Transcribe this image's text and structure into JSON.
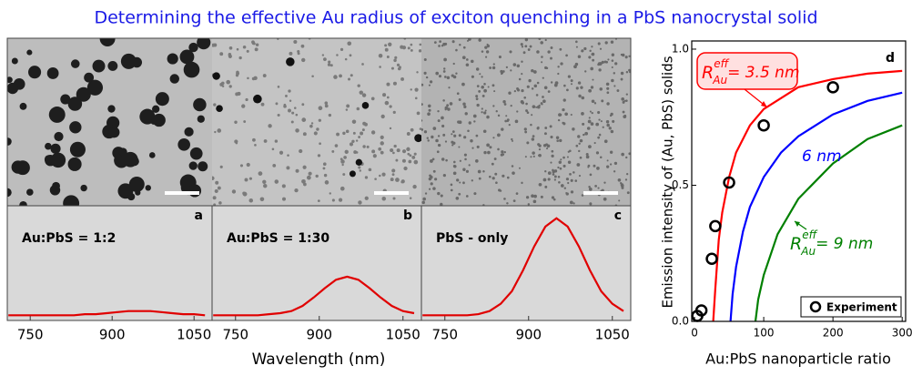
{
  "figure": {
    "title": "Determining the effective Au radius of exciton quenching in a PbS nanocrystal solid",
    "spectra_xlabel": "Wavelength (nm)"
  },
  "chart_data": [
    {
      "type": "line",
      "panel_label": "a",
      "annotation": "Au:PbS = 1:2",
      "x": [
        710,
        730,
        750,
        770,
        790,
        810,
        830,
        850,
        870,
        890,
        910,
        930,
        950,
        970,
        990,
        1010,
        1030,
        1050,
        1070
      ],
      "series": [
        {
          "color": "#e00000",
          "values": [
            0,
            0,
            0,
            0,
            0,
            0,
            0,
            0.01,
            0.01,
            0.02,
            0.03,
            0.04,
            0.04,
            0.04,
            0.03,
            0.02,
            0.01,
            0.01,
            0
          ]
        }
      ],
      "xlim": [
        708,
        1083
      ],
      "xticks": [
        750,
        900,
        1050
      ],
      "ylim": [
        -0.05,
        1.05
      ]
    },
    {
      "type": "line",
      "panel_label": "b",
      "annotation": "Au:PbS = 1:30",
      "x": [
        710,
        730,
        750,
        770,
        790,
        810,
        830,
        850,
        870,
        890,
        910,
        930,
        950,
        970,
        990,
        1010,
        1030,
        1050,
        1070
      ],
      "series": [
        {
          "color": "#e00000",
          "values": [
            0,
            0,
            0,
            0,
            0,
            0.01,
            0.02,
            0.04,
            0.09,
            0.17,
            0.26,
            0.34,
            0.37,
            0.34,
            0.26,
            0.17,
            0.09,
            0.04,
            0.02
          ]
        }
      ],
      "xlim": [
        708,
        1083
      ],
      "xticks": [
        750,
        900,
        1050
      ],
      "ylim": [
        -0.05,
        1.05
      ]
    },
    {
      "type": "line",
      "panel_label": "c",
      "annotation": "PbS - only",
      "x": [
        710,
        730,
        750,
        770,
        790,
        810,
        830,
        850,
        870,
        890,
        910,
        930,
        950,
        970,
        990,
        1010,
        1030,
        1050,
        1070
      ],
      "series": [
        {
          "color": "#e00000",
          "values": [
            0,
            0,
            0,
            0,
            0,
            0.01,
            0.04,
            0.11,
            0.23,
            0.43,
            0.66,
            0.85,
            0.93,
            0.85,
            0.66,
            0.43,
            0.23,
            0.11,
            0.04
          ]
        }
      ],
      "xlim": [
        708,
        1083
      ],
      "xticks": [
        750,
        900,
        1050
      ],
      "ylim": [
        -0.05,
        1.05
      ]
    },
    {
      "type": "scatter",
      "panel_label": "d",
      "xlabel": "Au:PbS nanoparticle ratio",
      "ylabel": "Emission intensity of (Au, PbS) solids",
      "xlim": [
        -4,
        305
      ],
      "xticks": [
        0,
        100,
        200,
        300
      ],
      "ylim": [
        0,
        1.03
      ],
      "yticks": [
        {
          "value": 0,
          "label": "0.0"
        },
        0.5,
        {
          "value": 1,
          "label": "1.0"
        }
      ],
      "legend": "lower right",
      "series": [
        {
          "name": "Experiment",
          "style": "marker",
          "color": "#000000",
          "x": [
            4,
            10,
            25,
            30,
            50,
            100,
            200
          ],
          "values": [
            0.02,
            0.04,
            0.23,
            0.35,
            0.51,
            0.72,
            0.86
          ]
        },
        {
          "style": "line",
          "color": "#ff0000",
          "x": [
            27,
            30,
            35,
            40,
            50,
            60,
            80,
            100,
            150,
            200,
            250,
            300
          ],
          "values": [
            0,
            0.12,
            0.3,
            0.4,
            0.53,
            0.62,
            0.72,
            0.78,
            0.86,
            0.89,
            0.91,
            0.92
          ]
        },
        {
          "style": "line",
          "color": "#0000ff",
          "x": [
            52,
            55,
            60,
            70,
            80,
            100,
            125,
            150,
            200,
            250,
            300
          ],
          "values": [
            0,
            0.1,
            0.2,
            0.33,
            0.42,
            0.53,
            0.62,
            0.68,
            0.76,
            0.81,
            0.84
          ]
        },
        {
          "style": "line",
          "color": "#008000",
          "x": [
            88,
            92,
            100,
            120,
            150,
            200,
            250,
            300
          ],
          "values": [
            0,
            0.08,
            0.17,
            0.32,
            0.45,
            0.58,
            0.67,
            0.72
          ]
        }
      ],
      "curve_labels": [
        {
          "symbol": "R",
          "sup": "eff",
          "sub": "Au",
          "text": "= 3.5 nm",
          "color": "#ff0000"
        },
        {
          "text": "6 nm",
          "color": "#0000ff"
        },
        {
          "symbol": "R",
          "sup": "eff",
          "sub": "Au",
          "text": "= 9 nm",
          "color": "#008000"
        }
      ]
    }
  ]
}
